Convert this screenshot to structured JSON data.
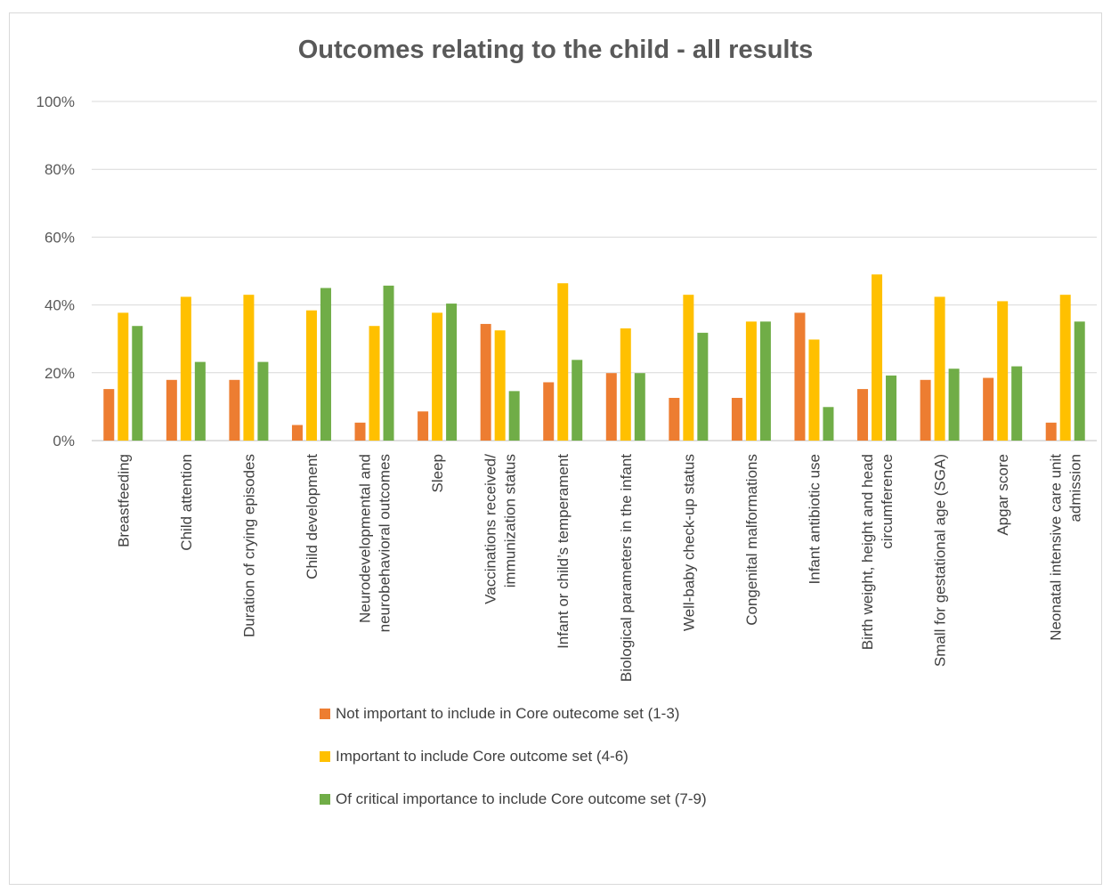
{
  "chart_data": {
    "type": "bar",
    "title": "Outcomes relating to the child - all results",
    "xlabel": "",
    "ylabel": "",
    "ylim": [
      0,
      100
    ],
    "yticks": [
      "0%",
      "20%",
      "40%",
      "60%",
      "80%",
      "100%"
    ],
    "grid": true,
    "legend_position": "bottom",
    "categories": [
      [
        "Breastfeeding"
      ],
      [
        "Child attention"
      ],
      [
        "Duration of crying episodes"
      ],
      [
        "Child development"
      ],
      [
        "Neurodevelopmental and",
        "neurobehavioral outcomes"
      ],
      [
        "Sleep"
      ],
      [
        "Vaccinations received/",
        "immunization status"
      ],
      [
        "Infant or child’s temperament"
      ],
      [
        "Biological parameters in the infant"
      ],
      [
        "Well-baby check-up status"
      ],
      [
        "Congenital malformations"
      ],
      [
        "Infant antibiotic use"
      ],
      [
        "Birth weight, height and head",
        "circumference"
      ],
      [
        "Small for gestational age (SGA)"
      ],
      [
        "Apgar score"
      ],
      [
        "Neonatal intensive care unit",
        "admission"
      ]
    ],
    "series": [
      {
        "name": "Not important to include in Core outecome set (1-3)",
        "color": "#ed7d31",
        "values": [
          15.2,
          17.9,
          17.9,
          4.6,
          5.3,
          8.6,
          34.4,
          17.2,
          19.9,
          12.6,
          12.6,
          37.7,
          15.2,
          17.9,
          18.5,
          5.3
        ]
      },
      {
        "name": "Important to include Core outcome set (4-6)",
        "color": "#ffc000",
        "values": [
          37.7,
          42.4,
          43.0,
          38.4,
          33.8,
          37.7,
          32.5,
          46.4,
          33.1,
          43.0,
          35.1,
          29.8,
          49.0,
          42.4,
          41.1,
          43.0
        ]
      },
      {
        "name": "Of critical importance to include Core outcome set (7-9)",
        "color": "#70ad47",
        "values": [
          33.8,
          23.2,
          23.2,
          45.0,
          45.7,
          40.4,
          14.6,
          23.8,
          19.9,
          31.8,
          35.1,
          9.9,
          19.2,
          21.2,
          21.9,
          35.1
        ]
      }
    ]
  }
}
